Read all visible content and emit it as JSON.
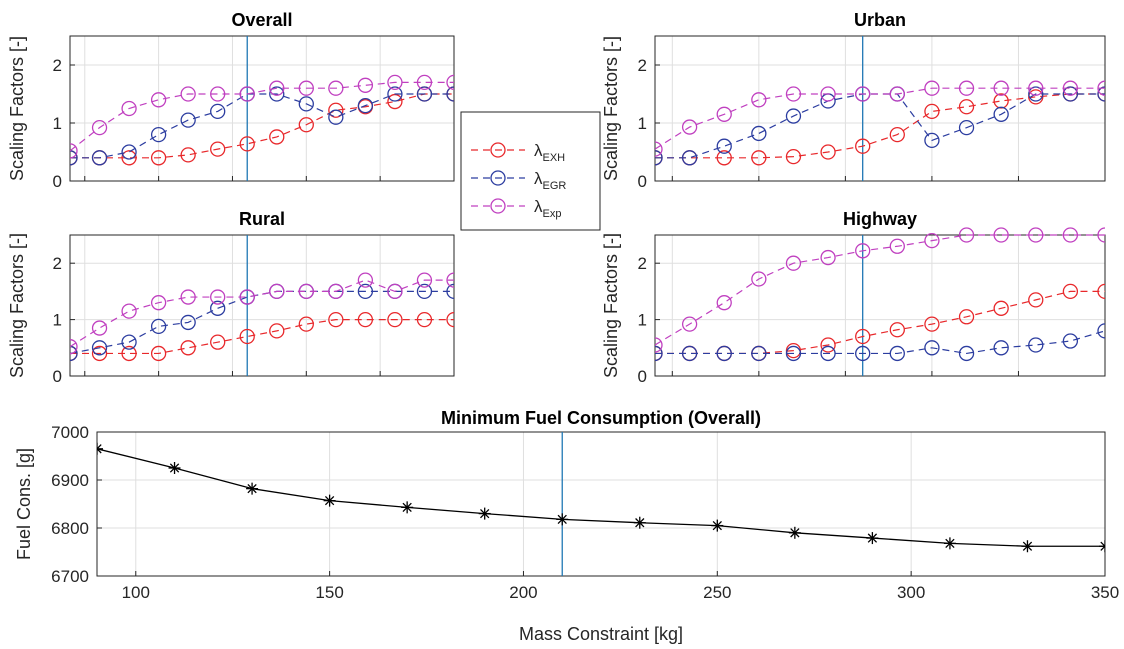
{
  "chart_data": [
    {
      "id": "overall",
      "type": "line",
      "title": "Overall",
      "xlabel": "",
      "ylabel": "Scaling Factors [-]",
      "xlim": [
        90,
        350
      ],
      "ylim": [
        0,
        2.5
      ],
      "yticks": [
        "0",
        "1",
        "2"
      ],
      "show_xticklabels": false,
      "vline": 210,
      "x": [
        90,
        110,
        130,
        150,
        170,
        190,
        210,
        230,
        250,
        270,
        290,
        310,
        330,
        350
      ],
      "series": [
        {
          "name": "λ_EXH",
          "color": "#e8282b",
          "values": [
            0.4,
            0.4,
            0.4,
            0.4,
            0.45,
            0.55,
            0.64,
            0.76,
            0.97,
            1.22,
            1.28,
            1.37,
            1.5,
            1.5
          ]
        },
        {
          "name": "λ_EGR",
          "color": "#2c3da0",
          "values": [
            0.4,
            0.4,
            0.5,
            0.8,
            1.05,
            1.2,
            1.5,
            1.5,
            1.33,
            1.1,
            1.3,
            1.5,
            1.5,
            1.5
          ]
        },
        {
          "name": "λ_Exp",
          "color": "#c040c0",
          "values": [
            0.52,
            0.92,
            1.25,
            1.4,
            1.5,
            1.5,
            1.5,
            1.6,
            1.6,
            1.6,
            1.65,
            1.7,
            1.7,
            1.7
          ]
        }
      ]
    },
    {
      "id": "urban",
      "type": "line",
      "title": "Urban",
      "xlabel": "",
      "ylabel": "Scaling Factors [-]",
      "xlim": [
        90,
        350
      ],
      "ylim": [
        0,
        2.5
      ],
      "yticks": [
        "0",
        "1",
        "2"
      ],
      "show_xticklabels": false,
      "vline": 210,
      "x": [
        90,
        110,
        130,
        150,
        170,
        190,
        210,
        230,
        250,
        270,
        290,
        310,
        330,
        350
      ],
      "series": [
        {
          "name": "λ_EXH",
          "color": "#e8282b",
          "values": [
            0.4,
            0.4,
            0.4,
            0.4,
            0.42,
            0.5,
            0.6,
            0.8,
            1.2,
            1.28,
            1.38,
            1.45,
            1.5,
            1.5
          ]
        },
        {
          "name": "λ_EGR",
          "color": "#2c3da0",
          "values": [
            0.4,
            0.4,
            0.6,
            0.82,
            1.12,
            1.38,
            1.5,
            1.5,
            0.7,
            0.92,
            1.15,
            1.5,
            1.5,
            1.5
          ]
        },
        {
          "name": "λ_Exp",
          "color": "#c040c0",
          "values": [
            0.55,
            0.93,
            1.15,
            1.4,
            1.5,
            1.5,
            1.5,
            1.5,
            1.6,
            1.6,
            1.6,
            1.6,
            1.6,
            1.6
          ]
        }
      ]
    },
    {
      "id": "rural",
      "type": "line",
      "title": "Rural",
      "xlabel": "",
      "ylabel": "Scaling Factors [-]",
      "xlim": [
        90,
        350
      ],
      "ylim": [
        0,
        2.5
      ],
      "yticks": [
        "0",
        "1",
        "2"
      ],
      "show_xticklabels": false,
      "vline": 210,
      "x": [
        90,
        110,
        130,
        150,
        170,
        190,
        210,
        230,
        250,
        270,
        290,
        310,
        330,
        350
      ],
      "series": [
        {
          "name": "λ_EXH",
          "color": "#e8282b",
          "values": [
            0.4,
            0.4,
            0.4,
            0.4,
            0.5,
            0.6,
            0.7,
            0.8,
            0.92,
            1.0,
            1.0,
            1.0,
            1.0,
            1.0
          ]
        },
        {
          "name": "λ_EGR",
          "color": "#2c3da0",
          "values": [
            0.4,
            0.5,
            0.6,
            0.88,
            0.95,
            1.2,
            1.4,
            1.5,
            1.5,
            1.5,
            1.5,
            1.5,
            1.5,
            1.5
          ]
        },
        {
          "name": "λ_Exp",
          "color": "#c040c0",
          "values": [
            0.52,
            0.85,
            1.15,
            1.3,
            1.4,
            1.4,
            1.4,
            1.5,
            1.5,
            1.5,
            1.7,
            1.5,
            1.7,
            1.7
          ]
        }
      ]
    },
    {
      "id": "highway",
      "type": "line",
      "title": "Highway",
      "xlabel": "",
      "ylabel": "Scaling Factors [-]",
      "xlim": [
        90,
        350
      ],
      "ylim": [
        0,
        2.5
      ],
      "yticks": [
        "0",
        "1",
        "2"
      ],
      "show_xticklabels": false,
      "vline": 210,
      "x": [
        90,
        110,
        130,
        150,
        170,
        190,
        210,
        230,
        250,
        270,
        290,
        310,
        330,
        350
      ],
      "series": [
        {
          "name": "λ_EXH",
          "color": "#e8282b",
          "values": [
            0.4,
            0.4,
            0.4,
            0.4,
            0.45,
            0.55,
            0.7,
            0.82,
            0.92,
            1.05,
            1.2,
            1.35,
            1.5,
            1.5
          ]
        },
        {
          "name": "λ_EGR",
          "color": "#2c3da0",
          "values": [
            0.4,
            0.4,
            0.4,
            0.4,
            0.4,
            0.4,
            0.4,
            0.4,
            0.5,
            0.4,
            0.5,
            0.55,
            0.62,
            0.8
          ]
        },
        {
          "name": "λ_Exp",
          "color": "#c040c0",
          "values": [
            0.55,
            0.92,
            1.3,
            1.72,
            2.0,
            2.1,
            2.22,
            2.3,
            2.4,
            2.5,
            2.5,
            2.5,
            2.5,
            2.5
          ]
        }
      ]
    },
    {
      "id": "fuel",
      "type": "line",
      "title": "Minimum Fuel Consumption (Overall)",
      "xlabel": "Mass Constraint [kg]",
      "ylabel": "Fuel Cons. [g]",
      "xlim": [
        90,
        350
      ],
      "ylim": [
        6700,
        7000
      ],
      "xticks": [
        "100",
        "150",
        "200",
        "250",
        "300",
        "350"
      ],
      "yticks": [
        "6700",
        "6800",
        "6900",
        "7000"
      ],
      "show_xticklabels": true,
      "vline": 210,
      "x": [
        90,
        110,
        130,
        150,
        170,
        190,
        210,
        230,
        250,
        270,
        290,
        310,
        330,
        350
      ],
      "series": [
        {
          "color": "#000000",
          "marker": "asterisk",
          "values": [
            6965,
            6925,
            6882,
            6857,
            6843,
            6830,
            6818,
            6811,
            6805,
            6790,
            6779,
            6768,
            6762,
            6762
          ]
        }
      ]
    }
  ],
  "legend": {
    "position": "between top-left and top-right panels",
    "entries": [
      {
        "symbol": "λ",
        "subscript": "EXH",
        "color": "#e8282b"
      },
      {
        "symbol": "λ",
        "subscript": "EGR",
        "color": "#2c3da0"
      },
      {
        "symbol": "λ",
        "subscript": "Exp",
        "color": "#c040c0"
      }
    ]
  },
  "colors": {
    "vline": "#1f77b4",
    "grid": "#dfdfdf",
    "axis": "#262626"
  }
}
